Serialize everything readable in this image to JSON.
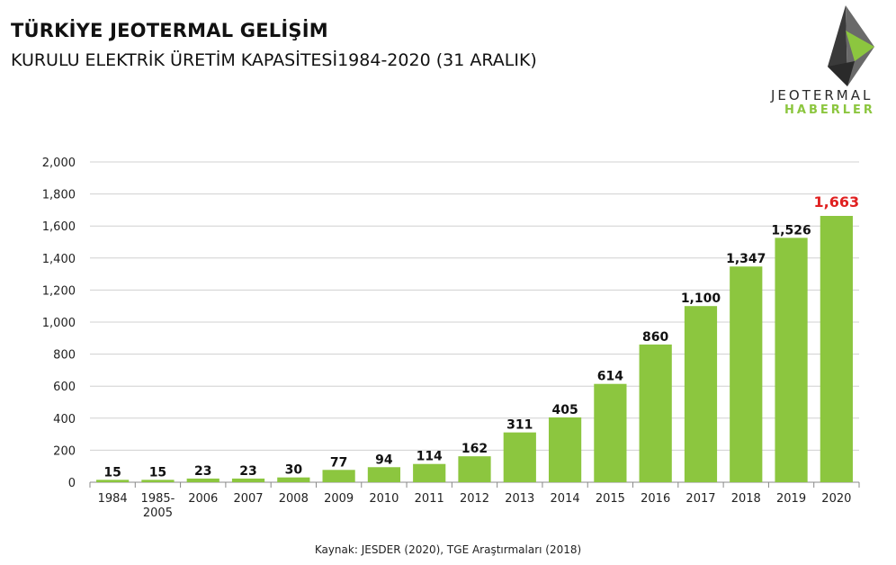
{
  "header": {
    "title": "TÜRKİYE JEOTERMAL GELİŞİM",
    "subtitle": "KURULU ELEKTRİK ÜRETİM KAPASİTESİ1984-2020 (31 ARALIK)"
  },
  "logo": {
    "name": "JEOTERMAL",
    "sub": "HABERLER"
  },
  "source": "Kaynak: JESDER (2020), TGE Araştırmaları (2018)",
  "colors": {
    "bar": "#8cc63f",
    "highlight_label": "#e02020",
    "grid": "#d0d0d0"
  },
  "chart_data": {
    "type": "bar",
    "title": "KURULU ELEKTRİK ÜRETİM KAPASİTESİ1984-2020 (31 ARALIK)",
    "categories": [
      "1984",
      "1985-\n2005",
      "2006",
      "2007",
      "2008",
      "2009",
      "2010",
      "2011",
      "2012",
      "2013",
      "2014",
      "2015",
      "2016",
      "2017",
      "2018",
      "2019",
      "2020"
    ],
    "values": [
      15,
      15,
      23,
      23,
      30,
      77,
      94,
      114,
      162,
      311,
      405,
      614,
      860,
      1100,
      1347,
      1526,
      1663
    ],
    "data_labels": [
      "15",
      "15",
      "23",
      "23",
      "30",
      "77",
      "94",
      "114",
      "162",
      "311",
      "405",
      "614",
      "860",
      "1,100",
      "1,347",
      "1,526",
      "1,663"
    ],
    "highlight_index": 16,
    "ylim": [
      0,
      2000
    ],
    "yticks": [
      0,
      200,
      400,
      600,
      800,
      1000,
      1200,
      1400,
      1600,
      1800,
      2000
    ],
    "ytick_labels": [
      "0",
      "200",
      "400",
      "600",
      "800",
      "1,000",
      "1,200",
      "1,400",
      "1,600",
      "1,800",
      "2,000"
    ],
    "grid": true,
    "xlabel": "",
    "ylabel": ""
  }
}
